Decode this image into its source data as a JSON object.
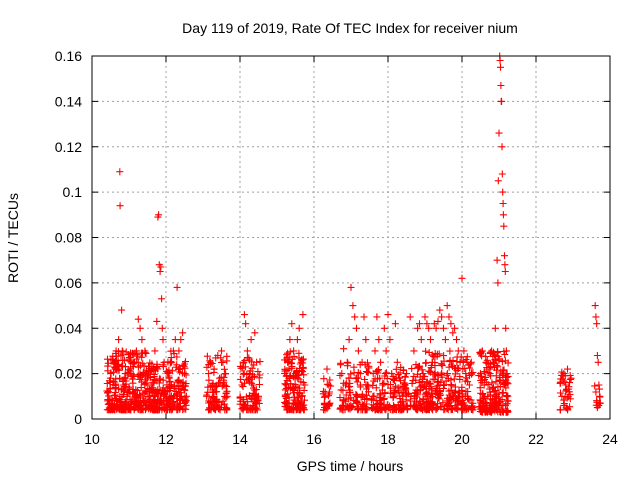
{
  "chart_data": {
    "type": "scatter",
    "title": "Day 119 of 2019, Rate Of TEC Index for receiver nium",
    "xlabel": "GPS time / hours",
    "ylabel": "ROTI / TECUs",
    "xlim": [
      10,
      24
    ],
    "ylim": [
      0,
      0.16
    ],
    "xticks": [
      10,
      12,
      14,
      16,
      18,
      20,
      22,
      24
    ],
    "xtick_labels": [
      "10",
      "12",
      "14",
      "16",
      "18",
      "20",
      "22",
      "24"
    ],
    "yticks": [
      0,
      0.02,
      0.04,
      0.06,
      0.08,
      0.1,
      0.12,
      0.14,
      0.16
    ],
    "ytick_labels": [
      "0",
      "0.02",
      "0.04",
      "0.06",
      "0.08",
      "0.1",
      "0.12",
      "0.14",
      "0.16"
    ],
    "grid": true,
    "marker": "+",
    "color": "#ff0000",
    "series": [
      {
        "name": "ROTI",
        "points": [
          [
            10.45,
            0.012
          ],
          [
            10.5,
            0.018
          ],
          [
            10.55,
            0.008
          ],
          [
            10.6,
            0.025
          ],
          [
            10.65,
            0.03
          ],
          [
            10.7,
            0.022
          ],
          [
            10.72,
            0.035
          ],
          [
            10.75,
            0.109
          ],
          [
            10.76,
            0.094
          ],
          [
            10.8,
            0.048
          ],
          [
            10.82,
            0.03
          ],
          [
            10.85,
            0.015
          ],
          [
            10.9,
            0.02
          ],
          [
            10.95,
            0.01
          ],
          [
            11.0,
            0.014
          ],
          [
            11.05,
            0.02
          ],
          [
            11.1,
            0.012
          ],
          [
            11.15,
            0.025
          ],
          [
            11.2,
            0.03
          ],
          [
            11.25,
            0.044
          ],
          [
            11.3,
            0.04
          ],
          [
            11.35,
            0.035
          ],
          [
            11.4,
            0.02
          ],
          [
            11.45,
            0.012
          ],
          [
            11.5,
            0.018
          ],
          [
            11.55,
            0.01
          ],
          [
            11.6,
            0.015
          ],
          [
            11.65,
            0.022
          ],
          [
            11.7,
            0.03
          ],
          [
            11.75,
            0.043
          ],
          [
            11.78,
            0.089
          ],
          [
            11.8,
            0.09
          ],
          [
            11.82,
            0.068
          ],
          [
            11.84,
            0.065
          ],
          [
            11.86,
            0.067
          ],
          [
            11.88,
            0.053
          ],
          [
            11.9,
            0.04
          ],
          [
            11.92,
            0.035
          ],
          [
            11.95,
            0.025
          ],
          [
            12.0,
            0.012
          ],
          [
            12.05,
            0.02
          ],
          [
            12.1,
            0.015
          ],
          [
            12.15,
            0.025
          ],
          [
            12.2,
            0.03
          ],
          [
            12.25,
            0.035
          ],
          [
            12.3,
            0.058
          ],
          [
            12.35,
            0.03
          ],
          [
            12.4,
            0.035
          ],
          [
            12.45,
            0.038
          ],
          [
            12.5,
            0.02
          ],
          [
            12.55,
            0.01
          ],
          [
            13.1,
            0.01
          ],
          [
            13.15,
            0.02
          ],
          [
            13.2,
            0.025
          ],
          [
            13.25,
            0.015
          ],
          [
            13.3,
            0.022
          ],
          [
            13.35,
            0.012
          ],
          [
            13.4,
            0.028
          ],
          [
            13.45,
            0.018
          ],
          [
            13.5,
            0.03
          ],
          [
            13.55,
            0.015
          ],
          [
            13.6,
            0.02
          ],
          [
            13.65,
            0.01
          ],
          [
            14.05,
            0.015
          ],
          [
            14.1,
            0.025
          ],
          [
            14.12,
            0.046
          ],
          [
            14.15,
            0.042
          ],
          [
            14.2,
            0.03
          ],
          [
            14.25,
            0.02
          ],
          [
            14.3,
            0.035
          ],
          [
            14.35,
            0.015
          ],
          [
            14.4,
            0.038
          ],
          [
            14.45,
            0.025
          ],
          [
            14.5,
            0.01
          ],
          [
            15.25,
            0.015
          ],
          [
            15.3,
            0.025
          ],
          [
            15.35,
            0.035
          ],
          [
            15.4,
            0.042
          ],
          [
            15.45,
            0.03
          ],
          [
            15.5,
            0.02
          ],
          [
            15.55,
            0.035
          ],
          [
            15.6,
            0.04
          ],
          [
            15.65,
            0.025
          ],
          [
            15.7,
            0.046
          ],
          [
            15.75,
            0.015
          ],
          [
            16.3,
            0.01
          ],
          [
            16.35,
            0.022
          ],
          [
            16.4,
            0.015
          ],
          [
            16.75,
            0.02
          ],
          [
            16.8,
            0.031
          ],
          [
            16.85,
            0.015
          ],
          [
            16.9,
            0.025
          ],
          [
            16.95,
            0.035
          ],
          [
            17.0,
            0.058
          ],
          [
            17.05,
            0.05
          ],
          [
            17.1,
            0.045
          ],
          [
            17.15,
            0.04
          ],
          [
            17.2,
            0.03
          ],
          [
            17.25,
            0.02
          ],
          [
            17.3,
            0.025
          ],
          [
            17.35,
            0.045
          ],
          [
            17.4,
            0.035
          ],
          [
            17.45,
            0.015
          ],
          [
            17.6,
            0.02
          ],
          [
            17.65,
            0.03
          ],
          [
            17.7,
            0.045
          ],
          [
            17.75,
            0.035
          ],
          [
            17.8,
            0.025
          ],
          [
            17.85,
            0.015
          ],
          [
            17.9,
            0.04
          ],
          [
            17.95,
            0.03
          ],
          [
            18.0,
            0.046
          ],
          [
            18.05,
            0.035
          ],
          [
            18.1,
            0.02
          ],
          [
            18.15,
            0.01
          ],
          [
            18.2,
            0.042
          ],
          [
            18.25,
            0.025
          ],
          [
            18.3,
            0.018
          ],
          [
            18.4,
            0.01
          ],
          [
            18.5,
            0.02
          ],
          [
            18.6,
            0.045
          ],
          [
            18.7,
            0.03
          ],
          [
            18.8,
            0.04
          ],
          [
            18.85,
            0.042
          ],
          [
            18.9,
            0.035
          ],
          [
            18.95,
            0.02
          ],
          [
            19.0,
            0.045
          ],
          [
            19.05,
            0.042
          ],
          [
            19.1,
            0.04
          ],
          [
            19.15,
            0.035
          ],
          [
            19.2,
            0.025
          ],
          [
            19.25,
            0.042
          ],
          [
            19.3,
            0.04
          ],
          [
            19.35,
            0.043
          ],
          [
            19.4,
            0.048
          ],
          [
            19.45,
            0.045
          ],
          [
            19.5,
            0.04
          ],
          [
            19.55,
            0.035
          ],
          [
            19.6,
            0.05
          ],
          [
            19.65,
            0.045
          ],
          [
            19.7,
            0.042
          ],
          [
            19.75,
            0.038
          ],
          [
            19.8,
            0.04
          ],
          [
            19.85,
            0.035
          ],
          [
            19.9,
            0.03
          ],
          [
            19.95,
            0.025
          ],
          [
            20.0,
            0.062
          ],
          [
            20.05,
            0.03
          ],
          [
            20.1,
            0.02
          ],
          [
            20.15,
            0.01
          ],
          [
            20.2,
            0.015
          ],
          [
            20.25,
            0.025
          ],
          [
            20.5,
            0.02
          ],
          [
            20.55,
            0.03
          ],
          [
            20.6,
            0.015
          ],
          [
            20.65,
            0.025
          ],
          [
            20.7,
            0.01
          ],
          [
            20.75,
            0.02
          ],
          [
            20.8,
            0.03
          ],
          [
            20.85,
            0.025
          ],
          [
            20.9,
            0.04
          ],
          [
            20.95,
            0.07
          ],
          [
            20.97,
            0.06
          ],
          [
            20.98,
            0.105
          ],
          [
            21.0,
            0.126
          ],
          [
            21.02,
            0.16
          ],
          [
            21.03,
            0.158
          ],
          [
            21.04,
            0.155
          ],
          [
            21.05,
            0.147
          ],
          [
            21.06,
            0.14
          ],
          [
            21.07,
            0.14
          ],
          [
            21.08,
            0.12
          ],
          [
            21.09,
            0.108
          ],
          [
            21.1,
            0.1
          ],
          [
            21.11,
            0.095
          ],
          [
            21.12,
            0.09
          ],
          [
            21.13,
            0.085
          ],
          [
            21.15,
            0.072
          ],
          [
            21.16,
            0.068
          ],
          [
            21.17,
            0.065
          ],
          [
            21.18,
            0.04
          ],
          [
            21.2,
            0.03
          ],
          [
            21.22,
            0.02
          ],
          [
            22.7,
            0.01
          ],
          [
            22.75,
            0.02
          ],
          [
            22.8,
            0.015
          ],
          [
            22.85,
            0.022
          ],
          [
            22.9,
            0.012
          ],
          [
            22.95,
            0.018
          ],
          [
            23.6,
            0.05
          ],
          [
            23.62,
            0.045
          ],
          [
            23.64,
            0.042
          ],
          [
            23.66,
            0.028
          ],
          [
            23.68,
            0.025
          ],
          [
            23.7,
            0.015
          ],
          [
            23.72,
            0.01
          ],
          [
            23.74,
            0.007
          ]
        ],
        "bands": [
          {
            "x": [
              10.4,
              11.0
            ],
            "y": [
              0.004,
              0.03
            ],
            "n": 170
          },
          {
            "x": [
              11.0,
              11.5
            ],
            "y": [
              0.004,
              0.03
            ],
            "n": 130
          },
          {
            "x": [
              11.5,
              12.05
            ],
            "y": [
              0.004,
              0.025
            ],
            "n": 140
          },
          {
            "x": [
              12.05,
              12.55
            ],
            "y": [
              0.004,
              0.03
            ],
            "n": 110
          },
          {
            "x": [
              13.1,
              13.65
            ],
            "y": [
              0.004,
              0.028
            ],
            "n": 90
          },
          {
            "x": [
              14.0,
              14.55
            ],
            "y": [
              0.004,
              0.028
            ],
            "n": 90
          },
          {
            "x": [
              15.2,
              15.75
            ],
            "y": [
              0.004,
              0.03
            ],
            "n": 140
          },
          {
            "x": [
              16.25,
              16.45
            ],
            "y": [
              0.004,
              0.018
            ],
            "n": 25
          },
          {
            "x": [
              16.7,
              17.5
            ],
            "y": [
              0.004,
              0.025
            ],
            "n": 100
          },
          {
            "x": [
              17.55,
              18.3
            ],
            "y": [
              0.004,
              0.022
            ],
            "n": 100
          },
          {
            "x": [
              18.3,
              19.0
            ],
            "y": [
              0.004,
              0.025
            ],
            "n": 110
          },
          {
            "x": [
              19.0,
              19.7
            ],
            "y": [
              0.004,
              0.03
            ],
            "n": 140
          },
          {
            "x": [
              19.7,
              20.3
            ],
            "y": [
              0.004,
              0.028
            ],
            "n": 110
          },
          {
            "x": [
              20.45,
              21.25
            ],
            "y": [
              0.003,
              0.03
            ],
            "n": 200
          },
          {
            "x": [
              22.65,
              22.95
            ],
            "y": [
              0.004,
              0.022
            ],
            "n": 35
          },
          {
            "x": [
              23.58,
              23.76
            ],
            "y": [
              0.005,
              0.016
            ],
            "n": 10
          }
        ]
      }
    ]
  }
}
